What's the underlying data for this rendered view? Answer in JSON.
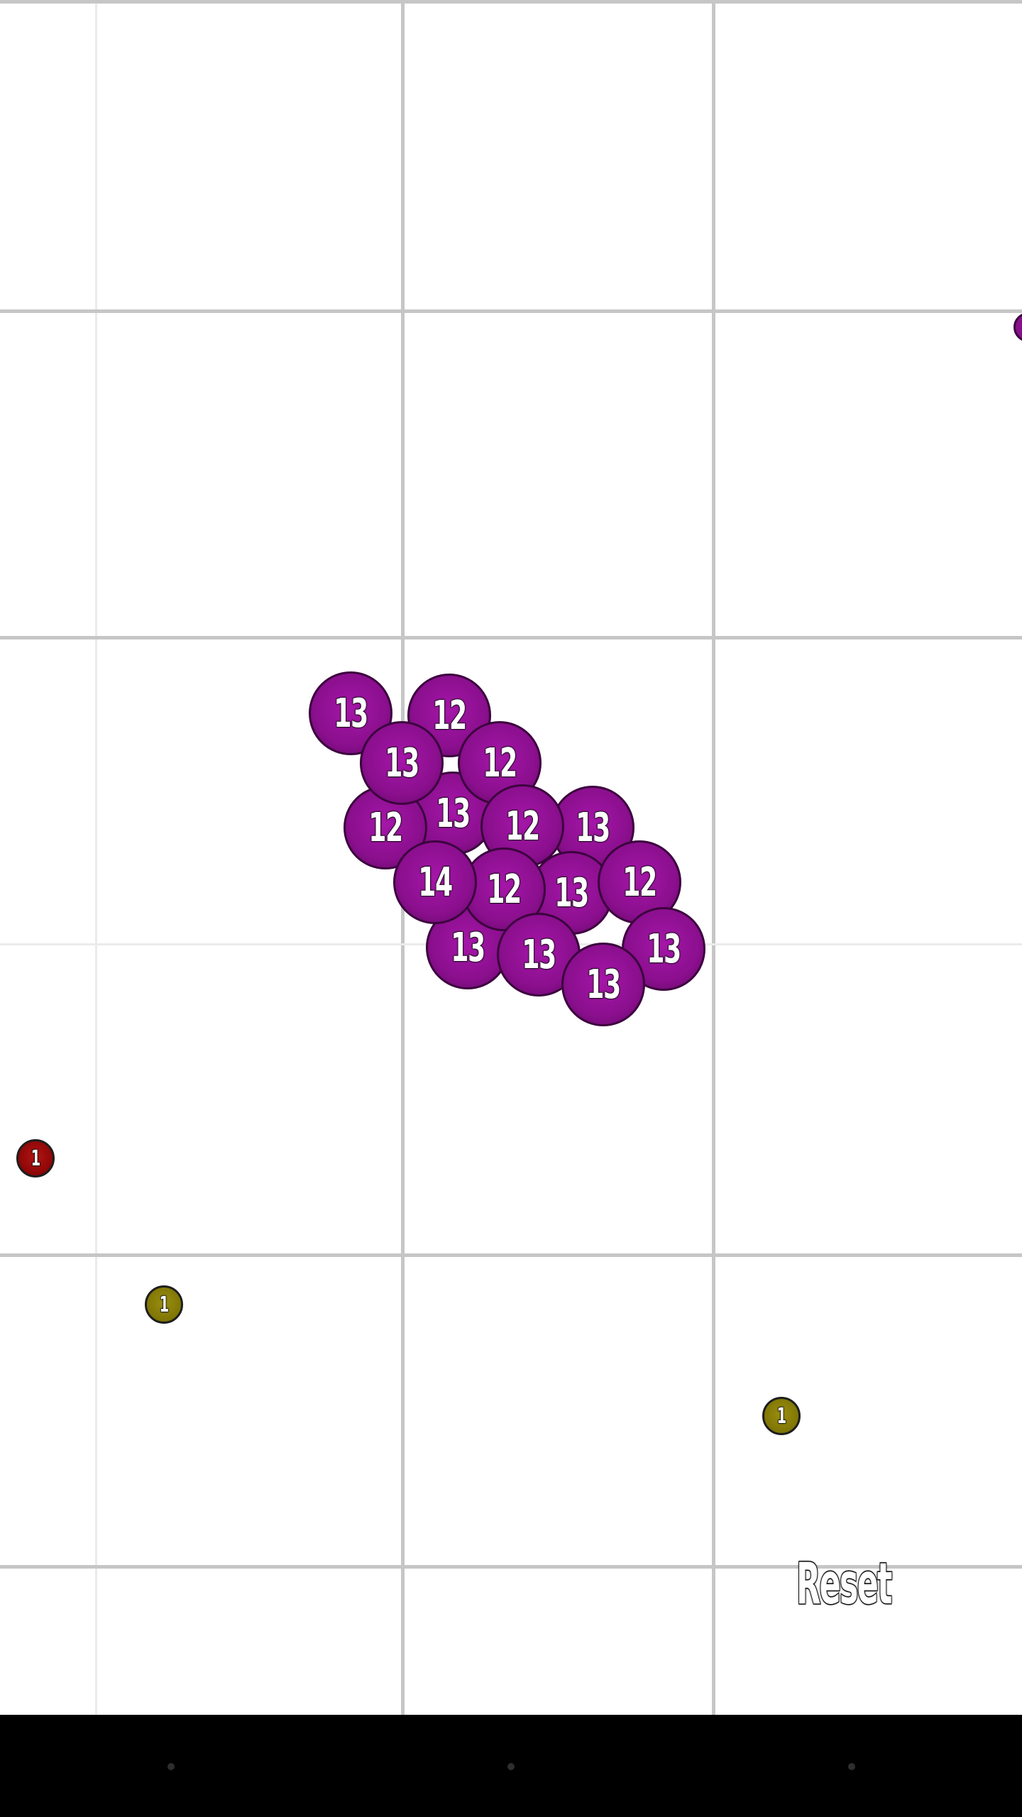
{
  "game": {
    "reset_label": "Reset",
    "player_cells": [
      "13",
      "12",
      "13",
      "12",
      "12",
      "13",
      "12",
      "13",
      "14",
      "12",
      "13",
      "12",
      "13",
      "13",
      "13",
      "13"
    ],
    "food_cells": [
      {
        "label": "1",
        "color": "red"
      },
      {
        "label": "1",
        "color": "olive"
      },
      {
        "label": "1",
        "color": "olive"
      }
    ]
  },
  "colors": {
    "player": "#8a0f8d",
    "food_red": "#8c0606",
    "food_olive": "#7f7505",
    "grid_major": "#c6c6c6",
    "grid_minor": "#ebebeb",
    "background": "#ffffff",
    "navbar": "#000000"
  }
}
